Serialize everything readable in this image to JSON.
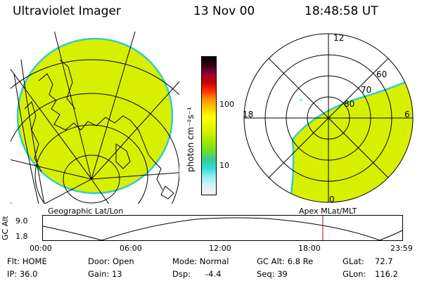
{
  "header": {
    "instrument": "Ultraviolet Imager",
    "date": "13 Nov 00",
    "time": "18:48:58 UT"
  },
  "colors": {
    "aurora_fill": "#d8f000",
    "rim": "#33cccc",
    "background": "#ffffff",
    "marker_line": "#cc0000"
  },
  "colorbar": {
    "unit_label": "photon cm⁻²s⁻¹",
    "ticks": [
      "100",
      "10"
    ],
    "stops": [
      "#000000",
      "#33001a",
      "#990033",
      "#cc0000",
      "#ff3300",
      "#ff9900",
      "#ffcc00",
      "#ffff00",
      "#e6f500",
      "#ccee00",
      "#99e600",
      "#66dd33",
      "#33cc99",
      "#33dddd",
      "#99eeee",
      "#d8f4f4",
      "#f2f2f2"
    ]
  },
  "maps": {
    "left_label": "Geographic Lat/Lon",
    "right_label": "Apex MLat/MLT",
    "polar_labels": {
      "mlt_12": "12",
      "mlt_18": "18",
      "mlt_6": "6",
      "mlt_0": "0",
      "lat_60": "60",
      "lat_70": "70",
      "lat_80": "80"
    }
  },
  "orbit": {
    "axis_title": "GC Alt",
    "y_ticks": [
      "9.0",
      "1.8"
    ],
    "x_ticks": [
      "00:00",
      "06:00",
      "12:00",
      "18:00",
      "23:59"
    ]
  },
  "status": {
    "flt": "Flt: HOME",
    "ip": "IP: 36.0",
    "door": "Door: Open",
    "gain": "Gain: 13",
    "mode": "Mode: Normal",
    "dsp": "Dsp:",
    "dsp_val": "-4.4",
    "gc_alt": "GC Alt: 6.8 Re",
    "seq": "Seq: 39",
    "glat": "GLat:",
    "glat_val": "72.7",
    "glon": "GLon:",
    "glon_val": "116.2"
  }
}
